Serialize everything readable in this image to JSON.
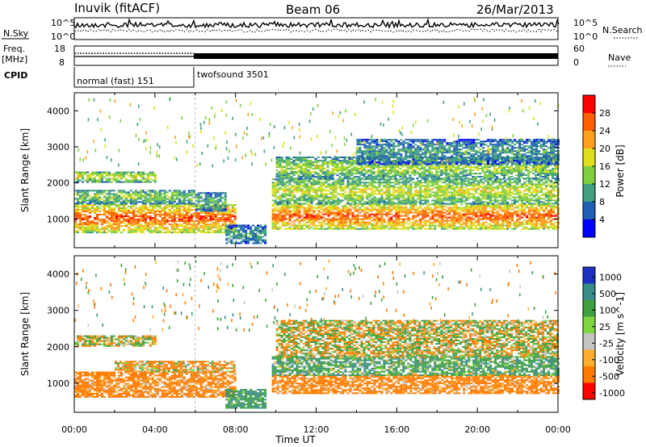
{
  "header": {
    "station": "Inuvik (fitACF)",
    "beam": "Beam 06",
    "date": "26/Mar/2013"
  },
  "top_panels": {
    "nsky_label": "N.Sky",
    "nsky_ticks": [
      "10^5",
      "10^0"
    ],
    "nsearch_label": "N.Search",
    "nsearch_ticks": [
      "10^5",
      "10^0"
    ],
    "freq_label": "Freq.",
    "freq_unit": "[MHz]",
    "freq_ticks": [
      "18",
      "8"
    ],
    "nave_label": "Nave",
    "nave_ticks": [
      "60",
      "0"
    ],
    "cpid_label": "CPID",
    "cpid_segments": [
      {
        "name": "normal (fast) 151",
        "start_hour": 0,
        "end_hour": 6
      },
      {
        "name": "twofsound 3501",
        "start_hour": 6,
        "end_hour": 24
      }
    ]
  },
  "colors": {
    "power_scale": [
      "#0000ff",
      "#1f5fb4",
      "#3f9f7f",
      "#7fcf3f",
      "#dfdf1f",
      "#ff9f1f",
      "#ff5f00",
      "#ff0000"
    ],
    "velocity_scale": [
      "#2030c0",
      "#3c8d8a",
      "#3fa040",
      "#7fd63f",
      "#c4c4c0",
      "#ffae30",
      "#ff7a00",
      "#ff0000"
    ]
  },
  "chart_data": [
    {
      "type": "heatmap",
      "panel": "power",
      "ylabel": "Slant Range [km]",
      "xlabel": "Time UT",
      "xlim": [
        0,
        24
      ],
      "ylim": [
        200,
        4500
      ],
      "x_ticks": [
        "00:00",
        "04:00",
        "08:00",
        "12:00",
        "16:00",
        "20:00",
        "00:00"
      ],
      "y_ticks": [
        1000,
        2000,
        3000,
        4000
      ],
      "colorbar": {
        "label": "Power [dB]",
        "ticks": [
          "28",
          "24",
          "20",
          "16",
          "12",
          "8",
          "4"
        ],
        "range": [
          0,
          32
        ]
      },
      "regions": [
        {
          "t": [
            0,
            8
          ],
          "r": [
            600,
            1400
          ],
          "value": 27
        },
        {
          "t": [
            0,
            6
          ],
          "r": [
            1400,
            1800
          ],
          "value": 15
        },
        {
          "t": [
            0,
            4
          ],
          "r": [
            2000,
            2300
          ],
          "value": 18
        },
        {
          "t": [
            6,
            7.5
          ],
          "r": [
            1200,
            1700
          ],
          "value": 12
        },
        {
          "t": [
            7.5,
            9.5
          ],
          "r": [
            300,
            800
          ],
          "value": 10
        },
        {
          "t": [
            9.8,
            24
          ],
          "r": [
            700,
            1400
          ],
          "value": 27
        },
        {
          "t": [
            9.8,
            24
          ],
          "r": [
            1400,
            2100
          ],
          "value": 18
        },
        {
          "t": [
            10,
            24
          ],
          "r": [
            2100,
            2700
          ],
          "value": 16
        },
        {
          "t": [
            14,
            24
          ],
          "r": [
            2500,
            3200
          ],
          "value": 10
        }
      ]
    },
    {
      "type": "heatmap",
      "panel": "velocity",
      "ylabel": "Slant Range [km]",
      "xlabel": "Time UT",
      "xlim": [
        0,
        24
      ],
      "ylim": [
        200,
        4500
      ],
      "x_ticks": [
        "00:00",
        "04:00",
        "08:00",
        "12:00",
        "16:00",
        "20:00",
        "00:00"
      ],
      "y_ticks": [
        1000,
        2000,
        3000,
        4000
      ],
      "colorbar": {
        "label": "Velocity [m s^-1]",
        "ticks": [
          "1000",
          "500",
          "100",
          "25",
          "-25",
          "-100",
          "-500",
          "-1000"
        ]
      },
      "regions": [
        {
          "t": [
            0,
            8
          ],
          "r": [
            600,
            1300
          ],
          "value": -250
        },
        {
          "t": [
            0,
            4
          ],
          "r": [
            2000,
            2300
          ],
          "value": 0
        },
        {
          "t": [
            2,
            8
          ],
          "r": [
            1300,
            1600
          ],
          "value": -100
        },
        {
          "t": [
            7.5,
            9.5
          ],
          "r": [
            300,
            800
          ],
          "value": 300
        },
        {
          "t": [
            9.8,
            24
          ],
          "r": [
            700,
            1200
          ],
          "value": -250
        },
        {
          "t": [
            9.8,
            24
          ],
          "r": [
            1200,
            1700
          ],
          "value": 200
        },
        {
          "t": [
            10,
            24
          ],
          "r": [
            1700,
            2700
          ],
          "value": 0
        }
      ]
    }
  ]
}
